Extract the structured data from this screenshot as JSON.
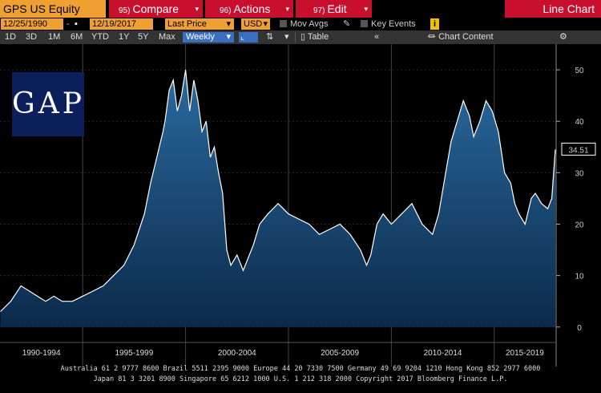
{
  "toolbar": {
    "security": "GPS US Equity",
    "compare": {
      "num": "95)",
      "label": "Compare"
    },
    "actions": {
      "num": "96)",
      "label": "Actions"
    },
    "edit": {
      "num": "97)",
      "label": "Edit"
    },
    "chart_title": "Line Chart"
  },
  "range": {
    "start": "12/25/1990",
    "end": "12/19/2017",
    "field": "Last Price",
    "currency": "USD",
    "mov_avgs": "Mov Avgs",
    "key_events": "Key Events",
    "info": "i"
  },
  "periods": [
    "1D",
    "3D",
    "1M",
    "6M",
    "YTD",
    "1Y",
    "5Y",
    "Max"
  ],
  "frequency": "Weekly",
  "table_label": "Table",
  "chart_content": "Chart Content",
  "logo_text": "GAP",
  "footer": {
    "line1": "Australia 61 2 9777 8600  Brazil 5511 2395 9000  Europe 44 20 7330 7500  Germany 49 69 9204 1210  Hong Kong 852 2977 6000",
    "line2": "Japan 81 3 3201 8900     Singapore 65 6212 1000     U.S. 1 212 318 2000     Copyright 2017 Bloomberg Finance L.P."
  },
  "colors": {
    "orange": "#f0a030",
    "red": "#c8102e",
    "area": "#15406a",
    "line": "#ffffff"
  },
  "chart_data": {
    "type": "area",
    "title": "",
    "y_ticks": [
      0,
      10,
      20,
      30,
      40,
      50
    ],
    "ylim": [
      -3,
      55
    ],
    "x_range": [
      1990.98,
      2017.97
    ],
    "x_groups": [
      {
        "label": "1990-1994",
        "start": 1990.98,
        "end": 1995
      },
      {
        "label": "1995-1999",
        "start": 1995,
        "end": 2000
      },
      {
        "label": "2000-2004",
        "start": 2000,
        "end": 2005
      },
      {
        "label": "2005-2009",
        "start": 2005,
        "end": 2010
      },
      {
        "label": "2010-2014",
        "start": 2010,
        "end": 2015
      },
      {
        "label": "2015-2019",
        "start": 2015,
        "end": 2020
      }
    ],
    "last_value": "34.51",
    "x": [
      1991.0,
      1991.5,
      1992.0,
      1992.4,
      1992.8,
      1993.2,
      1993.6,
      1994.0,
      1994.5,
      1995.0,
      1995.5,
      1996.0,
      1996.5,
      1997.0,
      1997.5,
      1998.0,
      1998.3,
      1998.6,
      1998.9,
      1999.0,
      1999.2,
      1999.4,
      1999.6,
      1999.8,
      2000.0,
      2000.2,
      2000.4,
      2000.6,
      2000.8,
      2001.0,
      2001.2,
      2001.4,
      2001.6,
      2001.8,
      2002.0,
      2002.2,
      2002.5,
      2002.8,
      2003.0,
      2003.3,
      2003.6,
      2004.0,
      2004.5,
      2005.0,
      2005.5,
      2006.0,
      2006.5,
      2007.0,
      2007.5,
      2008.0,
      2008.5,
      2008.8,
      2009.0,
      2009.3,
      2009.6,
      2010.0,
      2010.5,
      2011.0,
      2011.5,
      2012.0,
      2012.3,
      2012.6,
      2012.9,
      2013.2,
      2013.5,
      2013.8,
      2014.0,
      2014.3,
      2014.6,
      2014.9,
      2015.2,
      2015.5,
      2015.8,
      2016.0,
      2016.2,
      2016.5,
      2016.8,
      2017.0,
      2017.3,
      2017.6,
      2017.8,
      2017.97
    ],
    "y": [
      3,
      5,
      8,
      7,
      6,
      5,
      6,
      5,
      5,
      6,
      7,
      8,
      10,
      12,
      16,
      22,
      28,
      33,
      38,
      40,
      46,
      48,
      42,
      45,
      50,
      42,
      48,
      44,
      38,
      40,
      33,
      35,
      30,
      26,
      15,
      12,
      14,
      11,
      13,
      16,
      20,
      22,
      24,
      22,
      21,
      20,
      18,
      19,
      20,
      18,
      15,
      12,
      14,
      20,
      22,
      20,
      22,
      24,
      20,
      18,
      22,
      29,
      36,
      40,
      44,
      41,
      37,
      40,
      44,
      42,
      38,
      30,
      28,
      24,
      22,
      20,
      25,
      26,
      24,
      23,
      25,
      34.51
    ]
  }
}
